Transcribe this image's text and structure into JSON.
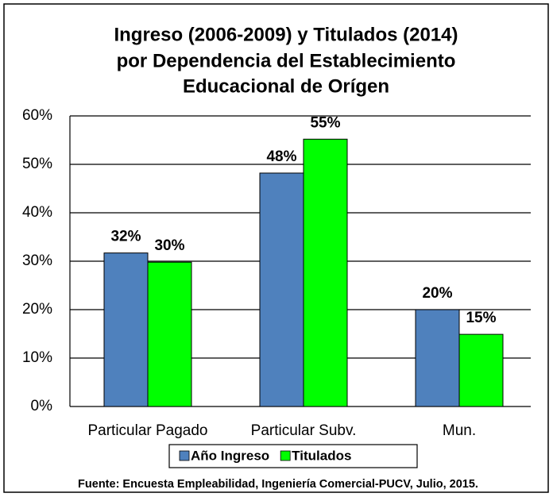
{
  "chart_data": {
    "type": "bar",
    "title": [
      "Ingreso (2006-2009) y Titulados (2014)",
      "por Dependencia del Establecimiento",
      "Educacional de Orígen"
    ],
    "categories": [
      "Particular Pagado",
      "Particular Subv.",
      "Mun."
    ],
    "series": [
      {
        "name": "Año Ingreso",
        "color": "#4f81bd",
        "values": [
          31.7,
          48.2,
          20
        ],
        "value_labels": [
          "32%",
          "48%",
          "20%"
        ]
      },
      {
        "name": "Titulados",
        "color": "#00ff00",
        "values": [
          29.8,
          55.2,
          14.9
        ],
        "value_labels": [
          "30%",
          "55%",
          "15%"
        ]
      }
    ],
    "ylim": [
      0,
      60
    ],
    "yticks": [
      {
        "value": 0,
        "label": "0%"
      },
      {
        "value": 10,
        "label": "10%"
      },
      {
        "value": 20,
        "label": "20%"
      },
      {
        "value": 30,
        "label": "30%"
      },
      {
        "value": 40,
        "label": "40%"
      },
      {
        "value": 50,
        "label": "50%"
      },
      {
        "value": 60,
        "label": "60%"
      }
    ],
    "grid": true,
    "legend": "bottom",
    "source": "Fuente: Encuesta Empleabilidad, Ingeniería Comercial-PUCV, Julio, 2015."
  }
}
